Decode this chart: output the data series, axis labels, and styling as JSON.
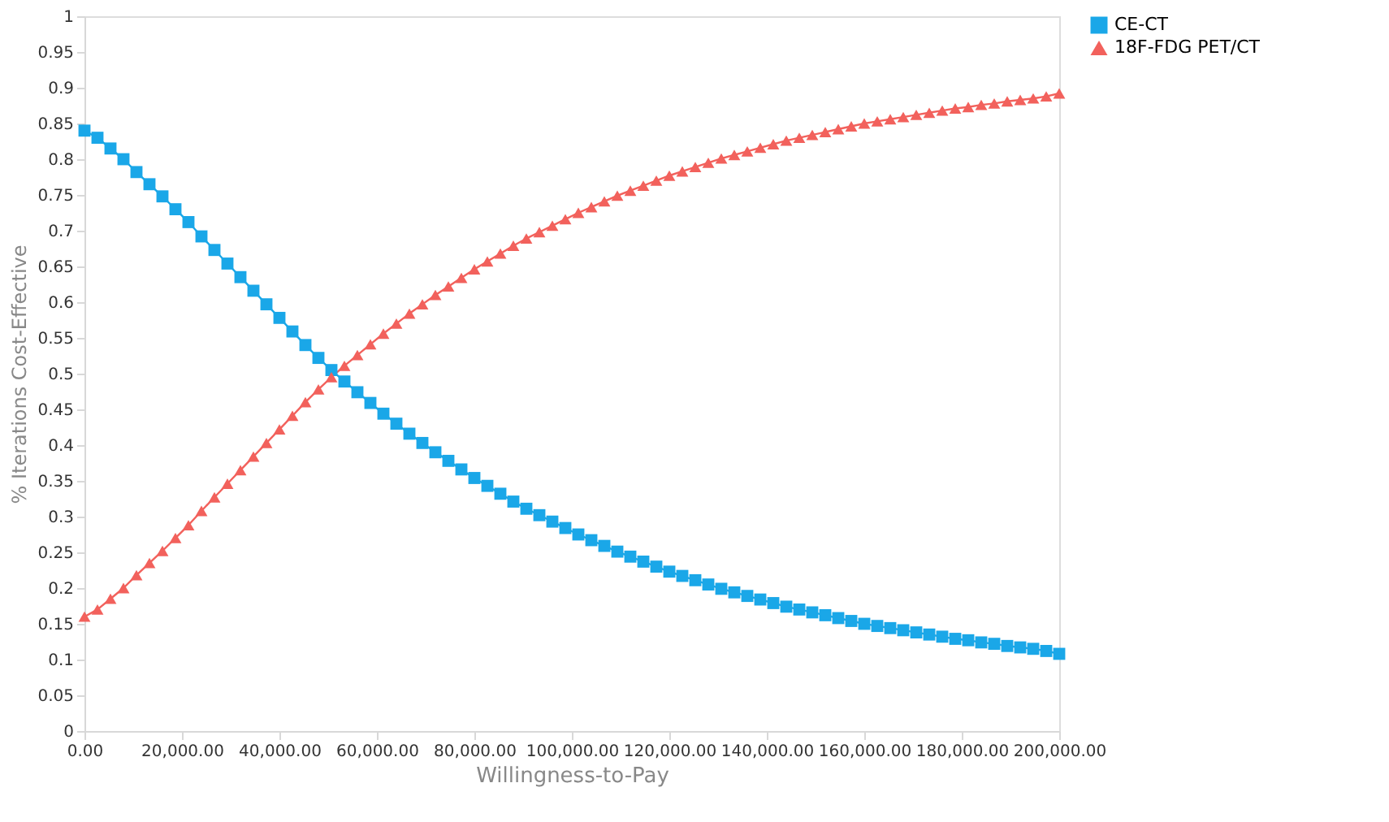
{
  "chart_data": {
    "type": "line",
    "xlabel": "Willingness-to-Pay",
    "ylabel": "% Iterations Cost-Effective",
    "x": [
      0,
      2666.67,
      5333.33,
      8000,
      10666.67,
      13333.33,
      16000,
      18666.67,
      21333.33,
      24000,
      26666.67,
      29333.33,
      32000,
      34666.67,
      37333.33,
      40000,
      42666.67,
      45333.33,
      48000,
      50666.67,
      53333.33,
      56000,
      58666.67,
      61333.33,
      64000,
      66666.67,
      69333.33,
      72000,
      74666.67,
      77333.33,
      80000,
      82666.67,
      85333.33,
      88000,
      90666.67,
      93333.33,
      96000,
      98666.67,
      101333.33,
      104000,
      106666.67,
      109333.33,
      112000,
      114666.67,
      117333.33,
      120000,
      122666.67,
      125333.33,
      128000,
      130666.67,
      133333.33,
      136000,
      138666.67,
      141333.33,
      144000,
      146666.67,
      149333.33,
      152000,
      154666.67,
      157333.33,
      160000,
      162666.67,
      165333.33,
      168000,
      170666.67,
      173333.33,
      176000,
      178666.67,
      181333.33,
      184000,
      186666.67,
      189333.33,
      192000,
      194666.67,
      197333.33,
      200000
    ],
    "series": [
      {
        "name": "CE-CT",
        "color": "#1aa7e8",
        "marker": "square",
        "values": [
          0.84,
          0.83,
          0.815,
          0.8,
          0.782,
          0.765,
          0.748,
          0.73,
          0.712,
          0.692,
          0.673,
          0.654,
          0.635,
          0.616,
          0.597,
          0.578,
          0.559,
          0.54,
          0.522,
          0.505,
          0.489,
          0.474,
          0.459,
          0.444,
          0.43,
          0.416,
          0.403,
          0.39,
          0.378,
          0.366,
          0.354,
          0.343,
          0.332,
          0.321,
          0.311,
          0.302,
          0.293,
          0.284,
          0.275,
          0.267,
          0.259,
          0.251,
          0.244,
          0.237,
          0.23,
          0.223,
          0.217,
          0.211,
          0.205,
          0.199,
          0.194,
          0.189,
          0.184,
          0.179,
          0.174,
          0.17,
          0.166,
          0.162,
          0.158,
          0.154,
          0.15,
          0.147,
          0.144,
          0.141,
          0.138,
          0.135,
          0.132,
          0.129,
          0.127,
          0.124,
          0.122,
          0.119,
          0.117,
          0.115,
          0.112,
          0.108
        ]
      },
      {
        "name": "18F-FDG PET/CT",
        "color": "#f2615c",
        "marker": "triangle",
        "values": [
          0.16,
          0.17,
          0.185,
          0.2,
          0.218,
          0.235,
          0.252,
          0.27,
          0.288,
          0.308,
          0.327,
          0.346,
          0.365,
          0.384,
          0.403,
          0.422,
          0.441,
          0.46,
          0.478,
          0.495,
          0.511,
          0.526,
          0.541,
          0.556,
          0.57,
          0.584,
          0.597,
          0.61,
          0.622,
          0.634,
          0.646,
          0.657,
          0.668,
          0.679,
          0.689,
          0.698,
          0.707,
          0.716,
          0.725,
          0.733,
          0.741,
          0.749,
          0.756,
          0.763,
          0.77,
          0.777,
          0.783,
          0.789,
          0.795,
          0.801,
          0.806,
          0.811,
          0.816,
          0.821,
          0.826,
          0.83,
          0.834,
          0.838,
          0.842,
          0.846,
          0.85,
          0.853,
          0.856,
          0.859,
          0.862,
          0.865,
          0.868,
          0.871,
          0.873,
          0.876,
          0.878,
          0.881,
          0.883,
          0.885,
          0.888,
          0.892
        ]
      }
    ],
    "xlim": [
      0,
      200000
    ],
    "xticks": [
      {
        "value": 0,
        "label": "0.00"
      },
      {
        "value": 20000,
        "label": "20,000.00"
      },
      {
        "value": 40000,
        "label": "40,000.00"
      },
      {
        "value": 60000,
        "label": "60,000.00"
      },
      {
        "value": 80000,
        "label": "80,000.00"
      },
      {
        "value": 100000,
        "label": "100,000.00"
      },
      {
        "value": 120000,
        "label": "120,000.00"
      },
      {
        "value": 140000,
        "label": "140,000.00"
      },
      {
        "value": 160000,
        "label": "160,000.00"
      },
      {
        "value": 180000,
        "label": "180,000.00"
      },
      {
        "value": 200000,
        "label": "200,000.00"
      }
    ],
    "ylim": [
      0,
      1
    ],
    "yticks": [
      0,
      0.05,
      0.1,
      0.15,
      0.2,
      0.25,
      0.3,
      0.35,
      0.4,
      0.45,
      0.5,
      0.55,
      0.6,
      0.65,
      0.7,
      0.75,
      0.8,
      0.85,
      0.9,
      0.95,
      1
    ],
    "grid": false,
    "legend": "top right",
    "line_style": "solid"
  }
}
